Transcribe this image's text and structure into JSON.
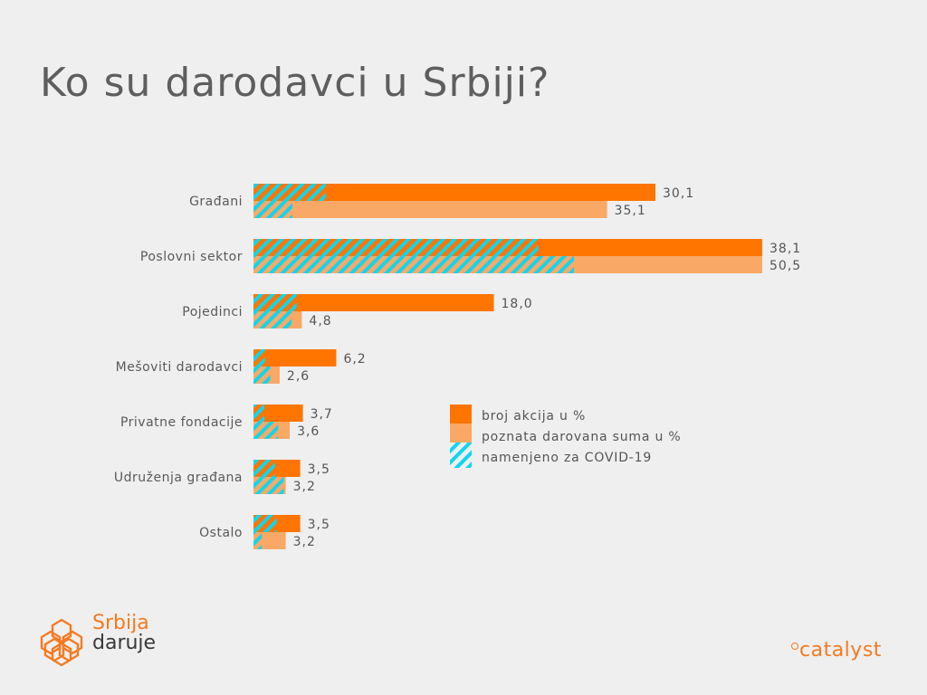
{
  "title": "Ko su darodavci u Srbiji?",
  "colors": {
    "background": "#efefef",
    "series1": "#ff7500",
    "series2": "#f9a866",
    "covid": "#0fd6f0"
  },
  "chart_data": {
    "type": "bar",
    "orientation": "horizontal",
    "title": "Ko su darodavci u Srbiji?",
    "xlabel": "",
    "ylabel": "",
    "grid": false,
    "legend_position": "center-right",
    "categories": [
      "Građani",
      "Poslovni sektor",
      "Pojedinci",
      "Mešoviti darodavci",
      "Privatne fondacije",
      "Udruženja građana",
      "Ostalo"
    ],
    "series": [
      {
        "name": "broj akcija u %",
        "values": [
          30.1,
          38.1,
          18.0,
          6.2,
          3.7,
          3.5,
          3.5
        ],
        "labels": [
          "30,1",
          "38,1",
          "18,0",
          "6,2",
          "3,7",
          "3,5",
          "3,5"
        ],
        "covid_share": [
          0.18,
          0.56,
          0.18,
          0.14,
          0.22,
          0.46,
          0.5
        ]
      },
      {
        "name": "poznata darovana suma u %",
        "values": [
          35.1,
          50.5,
          4.8,
          2.6,
          3.6,
          3.2,
          3.2
        ],
        "labels": [
          "35,1",
          "50,5",
          "4,8",
          "2,6",
          "3,6",
          "3,2",
          "3,2"
        ],
        "covid_share": [
          0.11,
          0.63,
          0.79,
          0.64,
          0.68,
          0.94,
          0.25
        ]
      }
    ],
    "legend": [
      "broj akcija u %",
      "poznata darovana suma u %",
      "namenjeno za COVID-19"
    ]
  },
  "logos": {
    "left_line1": "Srbija",
    "left_line2": "daruje",
    "right": "catalyst"
  }
}
